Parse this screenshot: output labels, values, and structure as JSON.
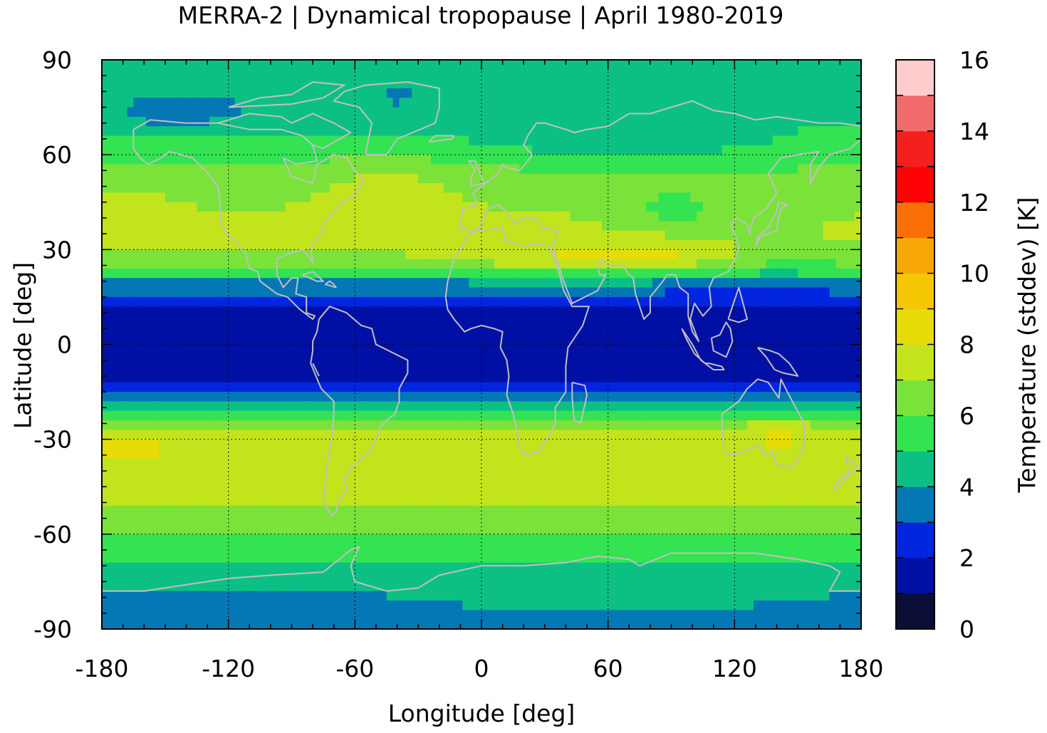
{
  "chart_data": {
    "type": "heatmap",
    "title": "MERRA-2 | Dynamical tropopause | April 1980-2019",
    "xlabel": "Longitude [deg]",
    "ylabel": "Latitude [deg]",
    "colorbar_label": "Temperature (stddev) [K]",
    "xlim": [
      -180,
      180
    ],
    "ylim": [
      -90,
      90
    ],
    "x_ticks": [
      -180,
      -120,
      -60,
      0,
      60,
      120,
      180
    ],
    "y_ticks": [
      90,
      60,
      30,
      0,
      -30,
      -60,
      -90
    ],
    "x_tick_labels": [
      "-180",
      "-120",
      "-60",
      "0",
      "60",
      "120",
      "180"
    ],
    "y_tick_labels": [
      "90",
      "60",
      "30",
      "0",
      "-30",
      "-60",
      "-90"
    ],
    "colorbar_range": [
      0,
      16
    ],
    "colorbar_ticks": [
      0,
      2,
      4,
      6,
      8,
      10,
      12,
      14,
      16
    ],
    "colorbar_tick_labels": [
      "0",
      "2",
      "4",
      "6",
      "8",
      "10",
      "12",
      "14",
      "16"
    ],
    "levels": [
      0,
      1,
      2,
      3,
      4,
      5,
      6,
      7,
      8,
      9,
      10,
      11,
      12,
      13,
      14,
      15,
      16
    ],
    "level_colors": [
      "#0a0d35",
      "#0010a5",
      "#0225e0",
      "#0477b5",
      "#0cc083",
      "#33e352",
      "#7be23a",
      "#c2e41c",
      "#e7dc08",
      "#f4c604",
      "#f7a804",
      "#fb7004",
      "#fe0305",
      "#f42020",
      "#f36a6a",
      "#fecccc"
    ],
    "grid": true,
    "coastline_color": "#c0c0c0",
    "zonal_profile": {
      "lat": [
        -90,
        -80,
        -72,
        -68,
        -62,
        -55,
        -48,
        -40,
        -33,
        -28,
        -24,
        -21,
        -19,
        -17,
        -14,
        -10,
        0,
        10,
        14,
        17,
        20,
        22,
        25,
        30,
        36,
        42,
        48,
        55,
        60,
        66,
        72,
        80,
        90
      ],
      "value": [
        3.5,
        3.8,
        4.4,
        5.0,
        5.9,
        6.7,
        7.1,
        7.3,
        7.5,
        7.0,
        6.0,
        5.0,
        4.0,
        3.2,
        2.4,
        1.6,
        1.6,
        1.6,
        2.4,
        3.2,
        4.0,
        5.0,
        6.0,
        7.0,
        7.2,
        7.0,
        6.6,
        6.1,
        5.6,
        5.2,
        4.9,
        4.5,
        4.2
      ]
    }
  }
}
